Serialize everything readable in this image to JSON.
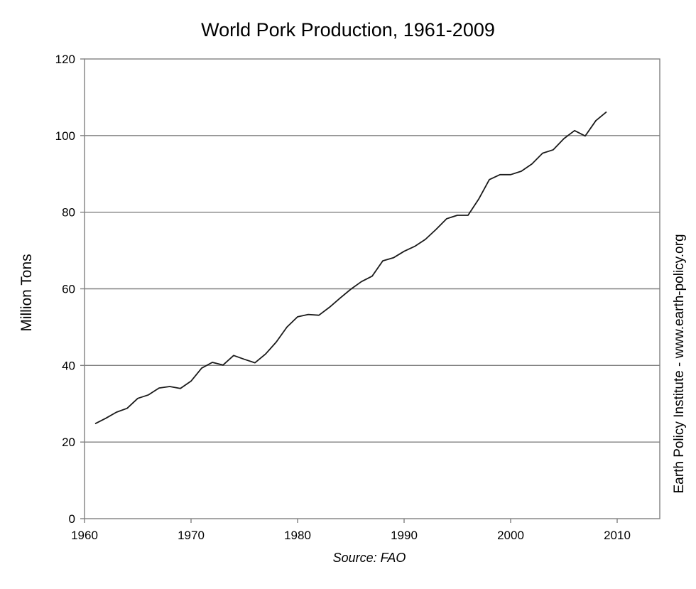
{
  "chart_data": {
    "type": "line",
    "title": "World Pork Production, 1961-2009",
    "xlabel": "",
    "ylabel": "Million Tons",
    "source": "Source: FAO",
    "side_note": "Earth Policy Institute - www.earth-policy.org",
    "xlim": [
      1960,
      2014
    ],
    "ylim": [
      0,
      120
    ],
    "x_ticks": [
      1960,
      1970,
      1980,
      1990,
      2000,
      2010
    ],
    "y_ticks": [
      0,
      20,
      40,
      60,
      80,
      100,
      120
    ],
    "grid": "horizontal",
    "line_color": "#1a1a1a",
    "series": [
      {
        "x": [
          1961,
          1962,
          1963,
          1964,
          1965,
          1966,
          1967,
          1968,
          1969,
          1970,
          1971,
          1972,
          1973,
          1974,
          1975,
          1976,
          1977,
          1978,
          1979,
          1980,
          1981,
          1982,
          1983,
          1984,
          1985,
          1986,
          1987,
          1988,
          1989,
          1990,
          1991,
          1992,
          1993,
          1994,
          1995,
          1996,
          1997,
          1998,
          1999,
          2000,
          2001,
          2002,
          2003,
          2004,
          2005,
          2006,
          2007,
          2008,
          2009
        ],
        "values": [
          24.8,
          26.2,
          27.8,
          28.8,
          31.4,
          32.3,
          34.1,
          34.5,
          34.0,
          35.9,
          39.3,
          40.8,
          40.1,
          42.6,
          41.6,
          40.7,
          43.0,
          46.1,
          50.0,
          52.7,
          53.3,
          53.1,
          55.2,
          57.6,
          59.9,
          61.9,
          63.3,
          67.3,
          68.1,
          69.8,
          71.1,
          72.9,
          75.5,
          78.3,
          79.2,
          79.2,
          83.4,
          88.5,
          89.8,
          89.8,
          90.7,
          92.6,
          95.4,
          96.3,
          99.2,
          101.3,
          99.9,
          103.9,
          106.2
        ]
      }
    ]
  }
}
